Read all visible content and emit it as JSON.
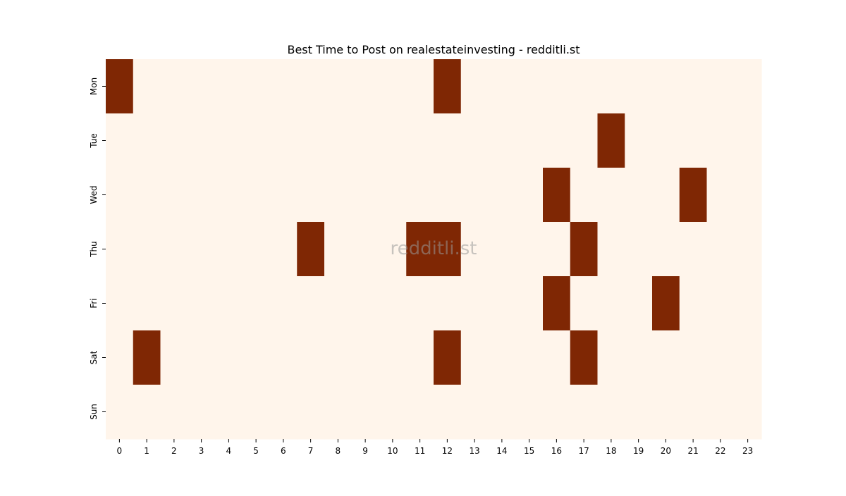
{
  "chart_data": {
    "type": "heatmap",
    "title": "Best Time to Post on realestateinvesting - redditli.st",
    "xlabel": "",
    "ylabel": "",
    "x_categories": [
      "0",
      "1",
      "2",
      "3",
      "4",
      "5",
      "6",
      "7",
      "8",
      "9",
      "10",
      "11",
      "12",
      "13",
      "14",
      "15",
      "16",
      "17",
      "18",
      "19",
      "20",
      "21",
      "22",
      "23"
    ],
    "y_categories": [
      "Mon",
      "Tue",
      "Wed",
      "Thu",
      "Fri",
      "Sat",
      "Sun"
    ],
    "values": [
      [
        1,
        0,
        0,
        0,
        0,
        0,
        0,
        0,
        0,
        0,
        0,
        0,
        1,
        0,
        0,
        0,
        0,
        0,
        0,
        0,
        0,
        0,
        0,
        0
      ],
      [
        0,
        0,
        0,
        0,
        0,
        0,
        0,
        0,
        0,
        0,
        0,
        0,
        0,
        0,
        0,
        0,
        0,
        0,
        1,
        0,
        0,
        0,
        0,
        0
      ],
      [
        0,
        0,
        0,
        0,
        0,
        0,
        0,
        0,
        0,
        0,
        0,
        0,
        0,
        0,
        0,
        0,
        1,
        0,
        0,
        0,
        0,
        1,
        0,
        0
      ],
      [
        0,
        0,
        0,
        0,
        0,
        0,
        0,
        1,
        0,
        0,
        0,
        1,
        1,
        0,
        0,
        0,
        0,
        1,
        0,
        0,
        0,
        0,
        0,
        0
      ],
      [
        0,
        0,
        0,
        0,
        0,
        0,
        0,
        0,
        0,
        0,
        0,
        0,
        0,
        0,
        0,
        0,
        1,
        0,
        0,
        0,
        1,
        0,
        0,
        0
      ],
      [
        0,
        1,
        0,
        0,
        0,
        0,
        0,
        0,
        0,
        0,
        0,
        0,
        1,
        0,
        0,
        0,
        0,
        1,
        0,
        0,
        0,
        0,
        0,
        0
      ],
      [
        0,
        0,
        0,
        0,
        0,
        0,
        0,
        0,
        0,
        0,
        0,
        0,
        0,
        0,
        0,
        0,
        0,
        0,
        0,
        0,
        0,
        0,
        0,
        0
      ]
    ],
    "colors": {
      "low": "#fff5eb",
      "high": "#7f2704"
    },
    "colorbar": false,
    "grid": false,
    "watermark": "redditli.st"
  }
}
